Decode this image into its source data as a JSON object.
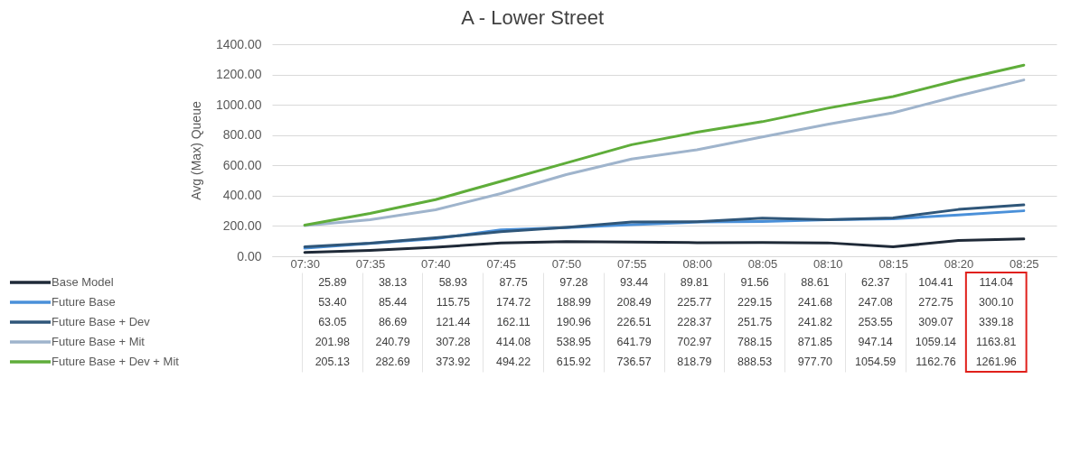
{
  "chart_data": {
    "type": "line",
    "title": "A - Lower Street",
    "ylabel": "Avg (Max) Queue",
    "categories": [
      "07:30",
      "07:35",
      "07:40",
      "07:45",
      "07:50",
      "07:55",
      "08:00",
      "08:05",
      "08:10",
      "08:15",
      "08:20",
      "08:25"
    ],
    "series": [
      {
        "name": "Base Model",
        "color": "#1f2a38",
        "values": [
          25.89,
          38.13,
          58.93,
          87.75,
          97.28,
          93.44,
          89.81,
          91.56,
          88.61,
          62.37,
          104.41,
          114.04
        ],
        "value_labels": [
          "25.89",
          "38.13",
          "58.93",
          "87.75",
          "97.28",
          "93.44",
          "89.81",
          "91.56",
          "88.61",
          "62.37",
          "104.41",
          "114.04"
        ]
      },
      {
        "name": "Future Base",
        "color": "#4a90d9",
        "values": [
          53.4,
          85.44,
          115.75,
          174.72,
          188.99,
          208.49,
          225.77,
          229.15,
          241.68,
          247.08,
          272.75,
          300.1
        ],
        "value_labels": [
          "53.40",
          "85.44",
          "115.75",
          "174.72",
          "188.99",
          "208.49",
          "225.77",
          "229.15",
          "241.68",
          "247.08",
          "272.75",
          "300.10"
        ]
      },
      {
        "name": "Future Base + Dev",
        "color": "#2f5679",
        "values": [
          63.05,
          86.69,
          121.44,
          162.11,
          190.96,
          226.51,
          228.37,
          251.75,
          241.82,
          253.55,
          309.07,
          339.18
        ],
        "value_labels": [
          "63.05",
          "86.69",
          "121.44",
          "162.11",
          "190.96",
          "226.51",
          "228.37",
          "251.75",
          "241.82",
          "253.55",
          "309.07",
          "339.18"
        ]
      },
      {
        "name": "Future Base + Mit",
        "color": "#9fb4cc",
        "values": [
          201.98,
          240.79,
          307.28,
          414.08,
          538.95,
          641.79,
          702.97,
          788.15,
          871.85,
          947.14,
          1059.14,
          1163.81
        ],
        "value_labels": [
          "201.98",
          "240.79",
          "307.28",
          "414.08",
          "538.95",
          "641.79",
          "702.97",
          "788.15",
          "871.85",
          "947.14",
          "1059.14",
          "1163.81"
        ]
      },
      {
        "name": "Future Base + Dev + Mit",
        "color": "#5fad3a",
        "values": [
          205.13,
          282.69,
          373.92,
          494.22,
          615.92,
          736.57,
          818.79,
          888.53,
          977.7,
          1054.59,
          1162.76,
          1261.96
        ],
        "value_labels": [
          "205.13",
          "282.69",
          "373.92",
          "494.22",
          "615.92",
          "736.57",
          "818.79",
          "888.53",
          "977.70",
          "1054.59",
          "1162.76",
          "1261.96"
        ]
      }
    ],
    "ylim": [
      0,
      1400
    ],
    "yticks": [
      {
        "value": 0,
        "label": "0.00"
      },
      {
        "value": 200,
        "label": "200.00"
      },
      {
        "value": 400,
        "label": "400.00"
      },
      {
        "value": 600,
        "label": "600.00"
      },
      {
        "value": 800,
        "label": "800.00"
      },
      {
        "value": 1000,
        "label": "1000.00"
      },
      {
        "value": 1200,
        "label": "1200.00"
      },
      {
        "value": 1400,
        "label": "1400.00"
      }
    ],
    "grid": "y",
    "legend": "bottom"
  }
}
